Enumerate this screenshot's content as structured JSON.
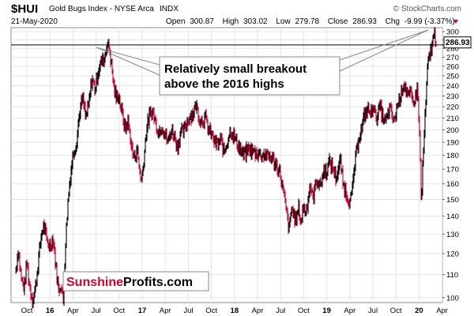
{
  "header": {
    "symbol": "$HUI",
    "name": "Gold Bugs Index - NYSE Arca",
    "exchange": "INDX",
    "watermark": "© StockCharts.com",
    "date": "21-May-2020",
    "open_label": "Open",
    "open": "300.87",
    "high_label": "High",
    "high": "303.02",
    "low_label": "Low",
    "low": "279.78",
    "close_label": "Close",
    "close": "286.93",
    "chg_label": "Chg",
    "chg": "-9.99 (-3.37%)"
  },
  "annotation": {
    "line1": "Relatively small breakout",
    "line2": "above the 2016 highs"
  },
  "logo": {
    "part1": "Sunshine",
    "part2": "Profits.com"
  },
  "colors": {
    "up": "#000000",
    "down": "#cc0033",
    "grid": "#e4e4e4",
    "hline": "#000000",
    "brand_red": "#d4002a"
  },
  "chart_data": {
    "type": "line",
    "x_ticks": [
      "Oct",
      "16",
      "Apr",
      "Jul",
      "Oct",
      "17",
      "Apr",
      "Jul",
      "Oct",
      "18",
      "Apr",
      "Jul",
      "Oct",
      "19",
      "Apr",
      "Jul",
      "Oct",
      "20",
      "Apr"
    ],
    "y_ticks": [
      100,
      110,
      120,
      130,
      140,
      150,
      160,
      170,
      180,
      190,
      200,
      210,
      220,
      230,
      240,
      250,
      260,
      270,
      280,
      290,
      300
    ],
    "y_scale": "log",
    "ylim": [
      98,
      305
    ],
    "last_value_label": "286.93",
    "reference_line": 284,
    "series": [
      {
        "values": [
          [
            0,
            112
          ],
          [
            3,
            122
          ],
          [
            7,
            108
          ],
          [
            11,
            104
          ],
          [
            14,
            116
          ],
          [
            18,
            104
          ],
          [
            22,
            99
          ],
          [
            26,
            106
          ],
          [
            30,
            120
          ],
          [
            33,
            130
          ],
          [
            36,
            135
          ],
          [
            40,
            126
          ],
          [
            44,
            124
          ],
          [
            48,
            128
          ],
          [
            52,
            112
          ],
          [
            55,
            103
          ],
          [
            58,
            106
          ],
          [
            61,
            98
          ],
          [
            64,
            125
          ],
          [
            67,
            148
          ],
          [
            70,
            165
          ],
          [
            74,
            182
          ],
          [
            78,
            190
          ],
          [
            82,
            215
          ],
          [
            86,
            228
          ],
          [
            90,
            210
          ],
          [
            94,
            222
          ],
          [
            98,
            248
          ],
          [
            102,
            236
          ],
          [
            106,
            256
          ],
          [
            110,
            265
          ],
          [
            114,
            268
          ],
          [
            117,
            285
          ],
          [
            120,
            282
          ],
          [
            123,
            262
          ],
          [
            126,
            240
          ],
          [
            129,
            228
          ],
          [
            132,
            232
          ],
          [
            135,
            220
          ],
          [
            138,
            210
          ],
          [
            141,
            200
          ],
          [
            144,
            208
          ],
          [
            147,
            196
          ],
          [
            150,
            182
          ],
          [
            153,
            178
          ],
          [
            156,
            186
          ],
          [
            159,
            170
          ],
          [
            162,
            162
          ],
          [
            165,
            178
          ],
          [
            168,
            200
          ],
          [
            172,
            212
          ],
          [
            176,
            216
          ],
          [
            180,
            206
          ],
          [
            184,
            198
          ],
          [
            188,
            204
          ],
          [
            192,
            196
          ],
          [
            196,
            190
          ],
          [
            200,
            200
          ],
          [
            204,
            196
          ],
          [
            208,
            186
          ],
          [
            212,
            198
          ],
          [
            216,
            198
          ],
          [
            220,
            206
          ],
          [
            224,
            212
          ],
          [
            228,
            214
          ],
          [
            232,
            222
          ],
          [
            236,
            210
          ],
          [
            240,
            208
          ],
          [
            244,
            210
          ],
          [
            248,
            200
          ],
          [
            252,
            196
          ],
          [
            256,
            190
          ],
          [
            260,
            188
          ],
          [
            264,
            192
          ],
          [
            268,
            182
          ],
          [
            272,
            190
          ],
          [
            276,
            200
          ],
          [
            280,
            196
          ],
          [
            284,
            190
          ],
          [
            288,
            186
          ],
          [
            292,
            180
          ],
          [
            296,
            182
          ],
          [
            300,
            185
          ],
          [
            304,
            183
          ],
          [
            308,
            182
          ],
          [
            312,
            182
          ],
          [
            316,
            180
          ],
          [
            320,
            181
          ],
          [
            324,
            179
          ],
          [
            328,
            179
          ],
          [
            332,
            176
          ],
          [
            336,
            172
          ],
          [
            340,
            168
          ],
          [
            343,
            158
          ],
          [
            346,
            150
          ],
          [
            349,
            140
          ],
          [
            352,
            132
          ],
          [
            355,
            145
          ],
          [
            358,
            140
          ],
          [
            361,
            138
          ],
          [
            364,
            145
          ],
          [
            367,
            136
          ],
          [
            370,
            146
          ],
          [
            373,
            142
          ],
          [
            376,
            150
          ],
          [
            379,
            160
          ],
          [
            382,
            150
          ],
          [
            385,
            157
          ],
          [
            388,
            164
          ],
          [
            391,
            158
          ],
          [
            394,
            163
          ],
          [
            397,
            170
          ],
          [
            400,
            168
          ],
          [
            403,
            175
          ],
          [
            406,
            173
          ],
          [
            409,
            170
          ],
          [
            412,
            164
          ],
          [
            415,
            170
          ],
          [
            418,
            176
          ],
          [
            421,
            160
          ],
          [
            424,
            156
          ],
          [
            427,
            152
          ],
          [
            430,
            148
          ],
          [
            433,
            155
          ],
          [
            436,
            172
          ],
          [
            439,
            184
          ],
          [
            442,
            196
          ],
          [
            445,
            200
          ],
          [
            448,
            210
          ],
          [
            451,
            216
          ],
          [
            454,
            218
          ],
          [
            457,
            212
          ],
          [
            460,
            224
          ],
          [
            463,
            210
          ],
          [
            466,
            214
          ],
          [
            469,
            220
          ],
          [
            472,
            212
          ],
          [
            475,
            206
          ],
          [
            478,
            210
          ],
          [
            481,
            218
          ],
          [
            484,
            213
          ],
          [
            487,
            206
          ],
          [
            490,
            218
          ],
          [
            493,
            226
          ],
          [
            496,
            232
          ],
          [
            499,
            243
          ],
          [
            502,
            238
          ],
          [
            505,
            228
          ],
          [
            508,
            232
          ],
          [
            511,
            224
          ],
          [
            514,
            228
          ],
          [
            517,
            238
          ],
          [
            520,
            190
          ],
          [
            522,
            144
          ],
          [
            524,
            176
          ],
          [
            526,
            200
          ],
          [
            528,
            226
          ],
          [
            530,
            260
          ],
          [
            533,
            272
          ],
          [
            536,
            287
          ],
          [
            539,
            296
          ],
          [
            541,
            290
          ]
        ]
      }
    ],
    "grid": true
  }
}
